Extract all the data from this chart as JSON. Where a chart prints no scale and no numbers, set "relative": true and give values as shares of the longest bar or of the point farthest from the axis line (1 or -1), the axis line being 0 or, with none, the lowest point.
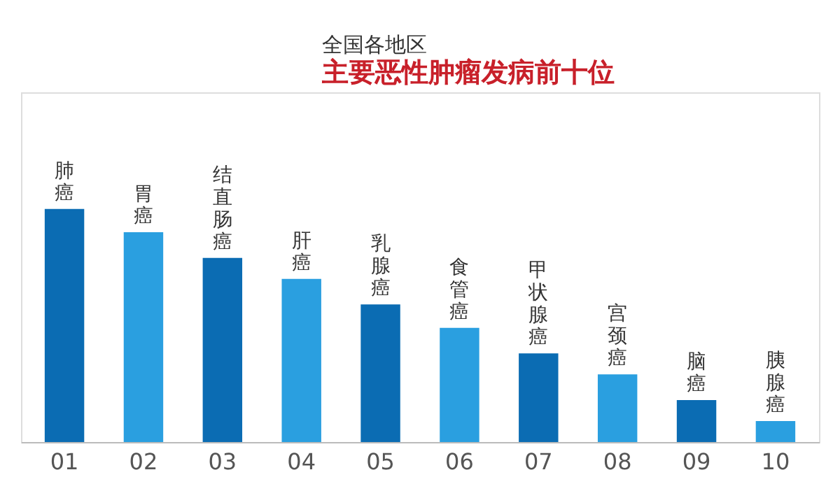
{
  "chart_data": {
    "type": "bar",
    "title": "全国各地区",
    "subtitle": "主要恶性肿瘤发病前十位",
    "relative": true,
    "categories": [
      "01",
      "02",
      "03",
      "04",
      "05",
      "06",
      "07",
      "08",
      "09",
      "10"
    ],
    "values": [
      1,
      0.9,
      0.79,
      0.7,
      0.59,
      0.49,
      0.38,
      0.29,
      0.18,
      0.09
    ],
    "colors": [
      "#0b6cb3",
      "#2a9fe0",
      "#0b6cb3",
      "#2a9fe0",
      "#0b6cb3",
      "#2a9fe0",
      "#0b6cb3",
      "#2a9fe0",
      "#0b6cb3",
      "#2a9fe0"
    ],
    "annotations": [
      "肺癌",
      "胃癌",
      "结直肠癌",
      "肝癌",
      "乳腺癌",
      "食管癌",
      "甲状腺癌",
      "宫颈癌",
      "脑癌",
      "胰腺癌"
    ],
    "grid": false
  }
}
